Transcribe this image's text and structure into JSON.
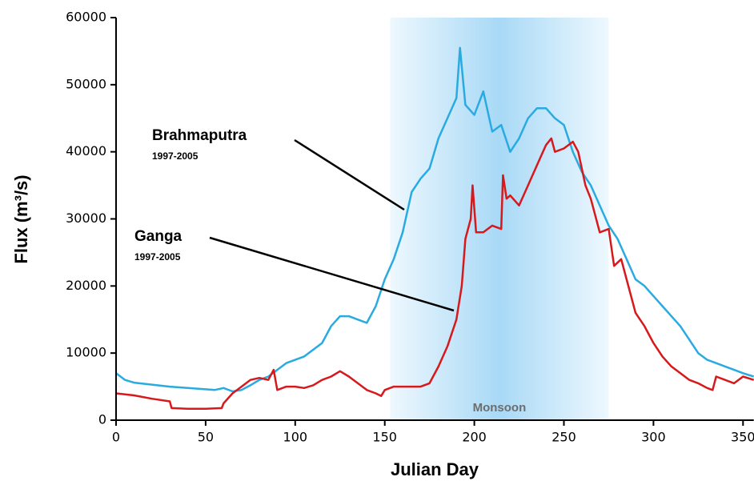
{
  "chart_data": {
    "type": "line",
    "xlabel": "Julian Day",
    "ylabel": "Flux (m³/s)",
    "xlim": [
      0,
      356
    ],
    "ylim": [
      0,
      60000
    ],
    "xticks": [
      0,
      50,
      100,
      150,
      200,
      250,
      300,
      350
    ],
    "yticks": [
      0,
      10000,
      20000,
      30000,
      40000,
      50000,
      60000
    ],
    "band": {
      "label": "Monsoon",
      "xlim": [
        153,
        275
      ]
    },
    "series": [
      {
        "name": "Brahmaputra",
        "period": "1997-2005",
        "color": "#29abe2",
        "x": [
          0,
          5,
          10,
          20,
          30,
          40,
          50,
          55,
          60,
          65,
          70,
          75,
          80,
          85,
          90,
          95,
          100,
          105,
          110,
          115,
          120,
          125,
          130,
          135,
          140,
          145,
          150,
          155,
          160,
          165,
          170,
          175,
          180,
          185,
          190,
          192,
          195,
          200,
          205,
          210,
          215,
          220,
          225,
          230,
          235,
          240,
          245,
          250,
          255,
          260,
          265,
          270,
          275,
          280,
          285,
          290,
          295,
          300,
          305,
          310,
          315,
          320,
          325,
          330,
          335,
          340,
          345,
          350,
          356
        ],
        "values": [
          7000,
          6000,
          5600,
          5300,
          5000,
          4800,
          4600,
          4500,
          4800,
          4300,
          4500,
          5200,
          6000,
          6500,
          7500,
          8500,
          9000,
          9500,
          10500,
          11500,
          14000,
          15500,
          15500,
          15000,
          14500,
          17000,
          21000,
          24000,
          28000,
          34000,
          36000,
          37500,
          42000,
          45000,
          48000,
          55500,
          47000,
          45500,
          49000,
          43000,
          44000,
          40000,
          42000,
          45000,
          46500,
          46500,
          45000,
          44000,
          40000,
          37000,
          35000,
          32000,
          29000,
          27000,
          24000,
          21000,
          20000,
          18500,
          17000,
          15500,
          14000,
          12000,
          10000,
          9000,
          8500,
          8000,
          7500,
          7000,
          6500
        ]
      },
      {
        "name": "Ganga",
        "period": "1997-2005",
        "color": "#d7191c",
        "x": [
          0,
          10,
          20,
          30,
          31,
          40,
          50,
          59,
          60,
          65,
          70,
          75,
          80,
          85,
          88,
          90,
          95,
          100,
          105,
          110,
          115,
          120,
          125,
          130,
          135,
          140,
          145,
          148,
          150,
          155,
          160,
          165,
          170,
          175,
          180,
          185,
          190,
          193,
          195,
          198,
          199,
          201,
          205,
          210,
          215,
          216,
          218,
          220,
          225,
          230,
          235,
          240,
          243,
          245,
          250,
          255,
          258,
          262,
          265,
          270,
          275,
          278,
          282,
          285,
          290,
          295,
          300,
          305,
          310,
          315,
          320,
          325,
          330,
          333,
          335,
          340,
          345,
          350,
          356
        ],
        "values": [
          4000,
          3700,
          3200,
          2800,
          1800,
          1700,
          1700,
          1800,
          2500,
          4000,
          5000,
          6000,
          6300,
          6000,
          7500,
          4500,
          5000,
          5000,
          4800,
          5200,
          6000,
          6500,
          7300,
          6500,
          5500,
          4500,
          4000,
          3600,
          4500,
          5000,
          5000,
          5000,
          5000,
          5500,
          8000,
          11000,
          15000,
          20000,
          27000,
          30000,
          35000,
          28000,
          28000,
          29000,
          28500,
          36500,
          33000,
          33500,
          32000,
          35000,
          38000,
          41000,
          42000,
          40000,
          40500,
          41500,
          40000,
          35000,
          33000,
          28000,
          28500,
          23000,
          24000,
          21000,
          16000,
          14000,
          11500,
          9500,
          8000,
          7000,
          6000,
          5500,
          4800,
          4500,
          6500,
          6000,
          5500,
          6500,
          6000
        ]
      }
    ]
  }
}
